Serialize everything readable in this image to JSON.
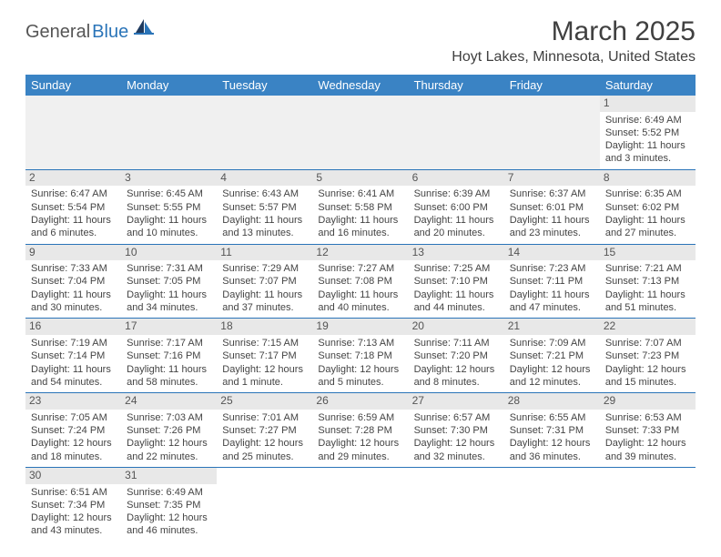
{
  "logo": {
    "text1": "General",
    "text2": "Blue"
  },
  "title": "March 2025",
  "location": "Hoyt Lakes, Minnesota, United States",
  "colors": {
    "header_bg": "#3a83c4",
    "header_text": "#ffffff",
    "row_border": "#2a74b8",
    "daynum_bg": "#e8e8e8",
    "logo_blue": "#2a74b8",
    "logo_gray": "#555555"
  },
  "daysOfWeek": [
    "Sunday",
    "Monday",
    "Tuesday",
    "Wednesday",
    "Thursday",
    "Friday",
    "Saturday"
  ],
  "weeks": [
    [
      null,
      null,
      null,
      null,
      null,
      null,
      {
        "n": "1",
        "sunrise": "Sunrise: 6:49 AM",
        "sunset": "Sunset: 5:52 PM",
        "daylight": "Daylight: 11 hours and 3 minutes."
      }
    ],
    [
      {
        "n": "2",
        "sunrise": "Sunrise: 6:47 AM",
        "sunset": "Sunset: 5:54 PM",
        "daylight": "Daylight: 11 hours and 6 minutes."
      },
      {
        "n": "3",
        "sunrise": "Sunrise: 6:45 AM",
        "sunset": "Sunset: 5:55 PM",
        "daylight": "Daylight: 11 hours and 10 minutes."
      },
      {
        "n": "4",
        "sunrise": "Sunrise: 6:43 AM",
        "sunset": "Sunset: 5:57 PM",
        "daylight": "Daylight: 11 hours and 13 minutes."
      },
      {
        "n": "5",
        "sunrise": "Sunrise: 6:41 AM",
        "sunset": "Sunset: 5:58 PM",
        "daylight": "Daylight: 11 hours and 16 minutes."
      },
      {
        "n": "6",
        "sunrise": "Sunrise: 6:39 AM",
        "sunset": "Sunset: 6:00 PM",
        "daylight": "Daylight: 11 hours and 20 minutes."
      },
      {
        "n": "7",
        "sunrise": "Sunrise: 6:37 AM",
        "sunset": "Sunset: 6:01 PM",
        "daylight": "Daylight: 11 hours and 23 minutes."
      },
      {
        "n": "8",
        "sunrise": "Sunrise: 6:35 AM",
        "sunset": "Sunset: 6:02 PM",
        "daylight": "Daylight: 11 hours and 27 minutes."
      }
    ],
    [
      {
        "n": "9",
        "sunrise": "Sunrise: 7:33 AM",
        "sunset": "Sunset: 7:04 PM",
        "daylight": "Daylight: 11 hours and 30 minutes."
      },
      {
        "n": "10",
        "sunrise": "Sunrise: 7:31 AM",
        "sunset": "Sunset: 7:05 PM",
        "daylight": "Daylight: 11 hours and 34 minutes."
      },
      {
        "n": "11",
        "sunrise": "Sunrise: 7:29 AM",
        "sunset": "Sunset: 7:07 PM",
        "daylight": "Daylight: 11 hours and 37 minutes."
      },
      {
        "n": "12",
        "sunrise": "Sunrise: 7:27 AM",
        "sunset": "Sunset: 7:08 PM",
        "daylight": "Daylight: 11 hours and 40 minutes."
      },
      {
        "n": "13",
        "sunrise": "Sunrise: 7:25 AM",
        "sunset": "Sunset: 7:10 PM",
        "daylight": "Daylight: 11 hours and 44 minutes."
      },
      {
        "n": "14",
        "sunrise": "Sunrise: 7:23 AM",
        "sunset": "Sunset: 7:11 PM",
        "daylight": "Daylight: 11 hours and 47 minutes."
      },
      {
        "n": "15",
        "sunrise": "Sunrise: 7:21 AM",
        "sunset": "Sunset: 7:13 PM",
        "daylight": "Daylight: 11 hours and 51 minutes."
      }
    ],
    [
      {
        "n": "16",
        "sunrise": "Sunrise: 7:19 AM",
        "sunset": "Sunset: 7:14 PM",
        "daylight": "Daylight: 11 hours and 54 minutes."
      },
      {
        "n": "17",
        "sunrise": "Sunrise: 7:17 AM",
        "sunset": "Sunset: 7:16 PM",
        "daylight": "Daylight: 11 hours and 58 minutes."
      },
      {
        "n": "18",
        "sunrise": "Sunrise: 7:15 AM",
        "sunset": "Sunset: 7:17 PM",
        "daylight": "Daylight: 12 hours and 1 minute."
      },
      {
        "n": "19",
        "sunrise": "Sunrise: 7:13 AM",
        "sunset": "Sunset: 7:18 PM",
        "daylight": "Daylight: 12 hours and 5 minutes."
      },
      {
        "n": "20",
        "sunrise": "Sunrise: 7:11 AM",
        "sunset": "Sunset: 7:20 PM",
        "daylight": "Daylight: 12 hours and 8 minutes."
      },
      {
        "n": "21",
        "sunrise": "Sunrise: 7:09 AM",
        "sunset": "Sunset: 7:21 PM",
        "daylight": "Daylight: 12 hours and 12 minutes."
      },
      {
        "n": "22",
        "sunrise": "Sunrise: 7:07 AM",
        "sunset": "Sunset: 7:23 PM",
        "daylight": "Daylight: 12 hours and 15 minutes."
      }
    ],
    [
      {
        "n": "23",
        "sunrise": "Sunrise: 7:05 AM",
        "sunset": "Sunset: 7:24 PM",
        "daylight": "Daylight: 12 hours and 18 minutes."
      },
      {
        "n": "24",
        "sunrise": "Sunrise: 7:03 AM",
        "sunset": "Sunset: 7:26 PM",
        "daylight": "Daylight: 12 hours and 22 minutes."
      },
      {
        "n": "25",
        "sunrise": "Sunrise: 7:01 AM",
        "sunset": "Sunset: 7:27 PM",
        "daylight": "Daylight: 12 hours and 25 minutes."
      },
      {
        "n": "26",
        "sunrise": "Sunrise: 6:59 AM",
        "sunset": "Sunset: 7:28 PM",
        "daylight": "Daylight: 12 hours and 29 minutes."
      },
      {
        "n": "27",
        "sunrise": "Sunrise: 6:57 AM",
        "sunset": "Sunset: 7:30 PM",
        "daylight": "Daylight: 12 hours and 32 minutes."
      },
      {
        "n": "28",
        "sunrise": "Sunrise: 6:55 AM",
        "sunset": "Sunset: 7:31 PM",
        "daylight": "Daylight: 12 hours and 36 minutes."
      },
      {
        "n": "29",
        "sunrise": "Sunrise: 6:53 AM",
        "sunset": "Sunset: 7:33 PM",
        "daylight": "Daylight: 12 hours and 39 minutes."
      }
    ],
    [
      {
        "n": "30",
        "sunrise": "Sunrise: 6:51 AM",
        "sunset": "Sunset: 7:34 PM",
        "daylight": "Daylight: 12 hours and 43 minutes."
      },
      {
        "n": "31",
        "sunrise": "Sunrise: 6:49 AM",
        "sunset": "Sunset: 7:35 PM",
        "daylight": "Daylight: 12 hours and 46 minutes."
      },
      null,
      null,
      null,
      null,
      null
    ]
  ]
}
